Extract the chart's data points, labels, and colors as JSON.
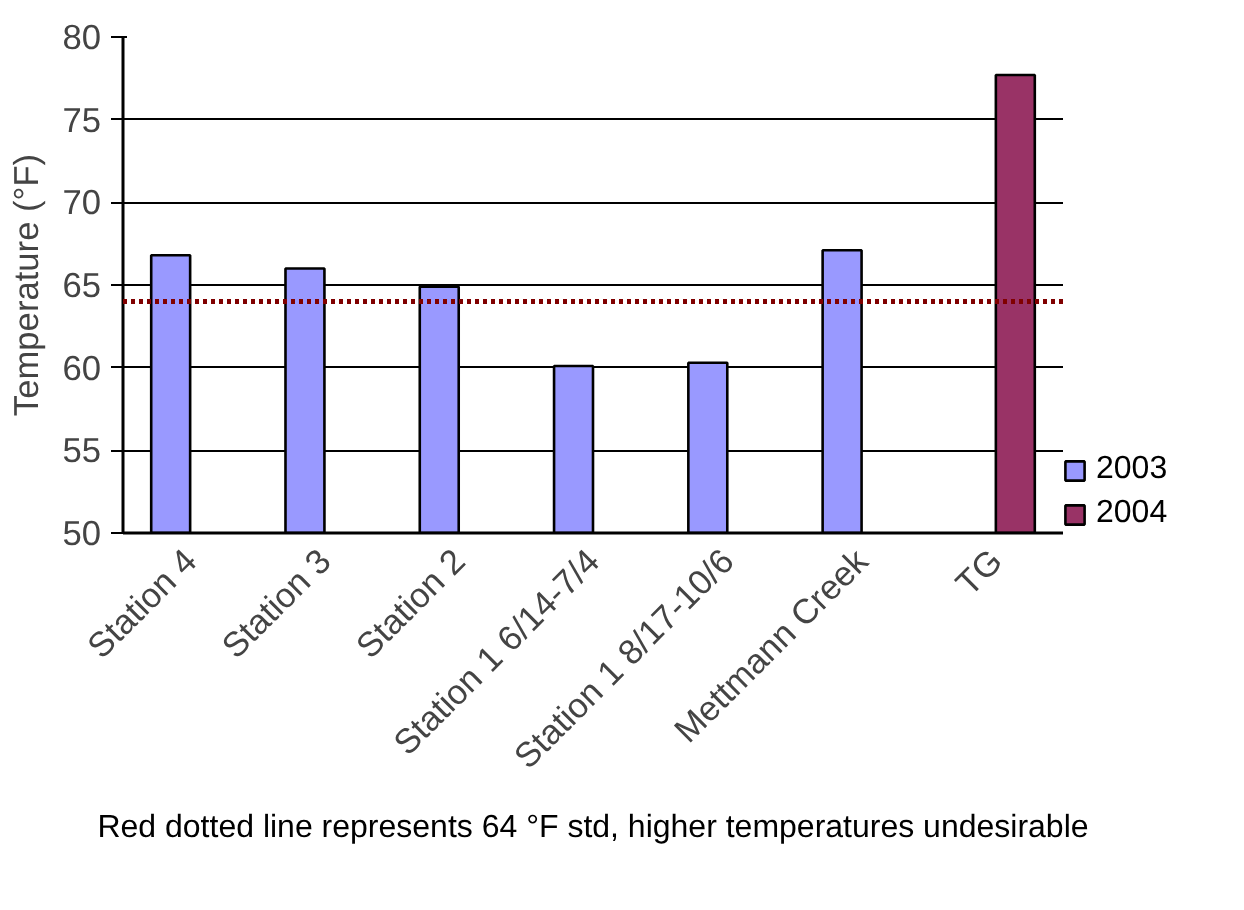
{
  "chart_data": {
    "type": "bar",
    "ylabel": "Temperature (°F)",
    "categories": [
      "Station 4",
      "Station 3",
      "Station 2",
      "Station 1 6/14-7/4",
      "Station 1 8/17-10/6",
      "Mettmann Creek",
      "TG"
    ],
    "series": [
      {
        "name": "2003",
        "color": "#9999ff",
        "values": [
          66.8,
          66.0,
          64.9,
          60.1,
          60.3,
          67.1,
          null
        ]
      },
      {
        "name": "2004",
        "color": "#993366",
        "values": [
          null,
          null,
          null,
          null,
          null,
          null,
          77.7
        ]
      }
    ],
    "ylim": [
      50,
      80
    ],
    "yticks": [
      50,
      55,
      60,
      65,
      70,
      75,
      80
    ],
    "grid": "y",
    "legend": "bottom right",
    "ref_lines": [
      {
        "axis": "y",
        "value": 64,
        "color": "#800000",
        "line_style": "dotted"
      }
    ],
    "annotations": [
      "Red dotted line represents 64 °F std, higher temperatures undesirable"
    ]
  }
}
